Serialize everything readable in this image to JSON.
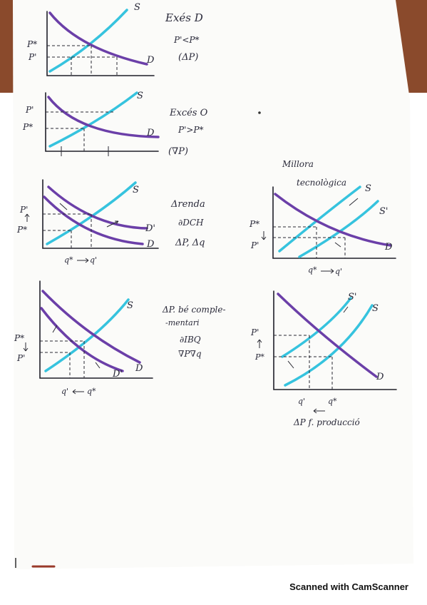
{
  "palette": {
    "paper": "#fbfbf9",
    "background": "#8a4a2c",
    "ink": "#2a2a3a",
    "supply": "#36c3de",
    "demand": "#6b3fa8"
  },
  "footer": {
    "text": "Scanned with CamScanner"
  },
  "graphs": [
    {
      "price_labels": [
        "P*",
        "P'"
      ],
      "curve_labels": [
        "S",
        "D"
      ],
      "quantity_labels": [],
      "notes": [
        "Exés D",
        "P'<P*",
        "(ΔP)"
      ]
    },
    {
      "price_labels": [
        "P'",
        "P*"
      ],
      "curve_labels": [
        "S",
        "D"
      ],
      "quantity_labels": [],
      "notes": [
        "Excés O",
        "P'>P*",
        "(∇P)"
      ]
    },
    {
      "price_labels": [
        "P'",
        "P*"
      ],
      "curve_labels": [
        "S",
        "D'",
        "D"
      ],
      "quantity_labels": [
        "q*",
        "q'"
      ],
      "notes": [
        "Δrenda",
        "∂DCH",
        "ΔP, Δq"
      ]
    },
    {
      "title_lines": [
        "Millora",
        "tecnològica"
      ],
      "price_labels": [
        "P*",
        "P'"
      ],
      "curve_labels": [
        "S",
        "S'",
        "D"
      ],
      "quantity_labels": [
        "q*",
        "q'"
      ],
      "notes": []
    },
    {
      "price_labels": [
        "P*",
        "P'"
      ],
      "curve_labels": [
        "S",
        "D",
        "D'"
      ],
      "quantity_labels": [
        "q'",
        "q*"
      ],
      "notes": [
        "ΔP. bé comple-",
        "-mentari",
        "∂IBQ",
        "∇P∇q"
      ]
    },
    {
      "price_labels": [
        "P'",
        "P*"
      ],
      "curve_labels": [
        "S'",
        "S",
        "D"
      ],
      "quantity_labels": [
        "q'",
        "q*"
      ],
      "notes": [
        "ΔP f. producció"
      ]
    }
  ]
}
